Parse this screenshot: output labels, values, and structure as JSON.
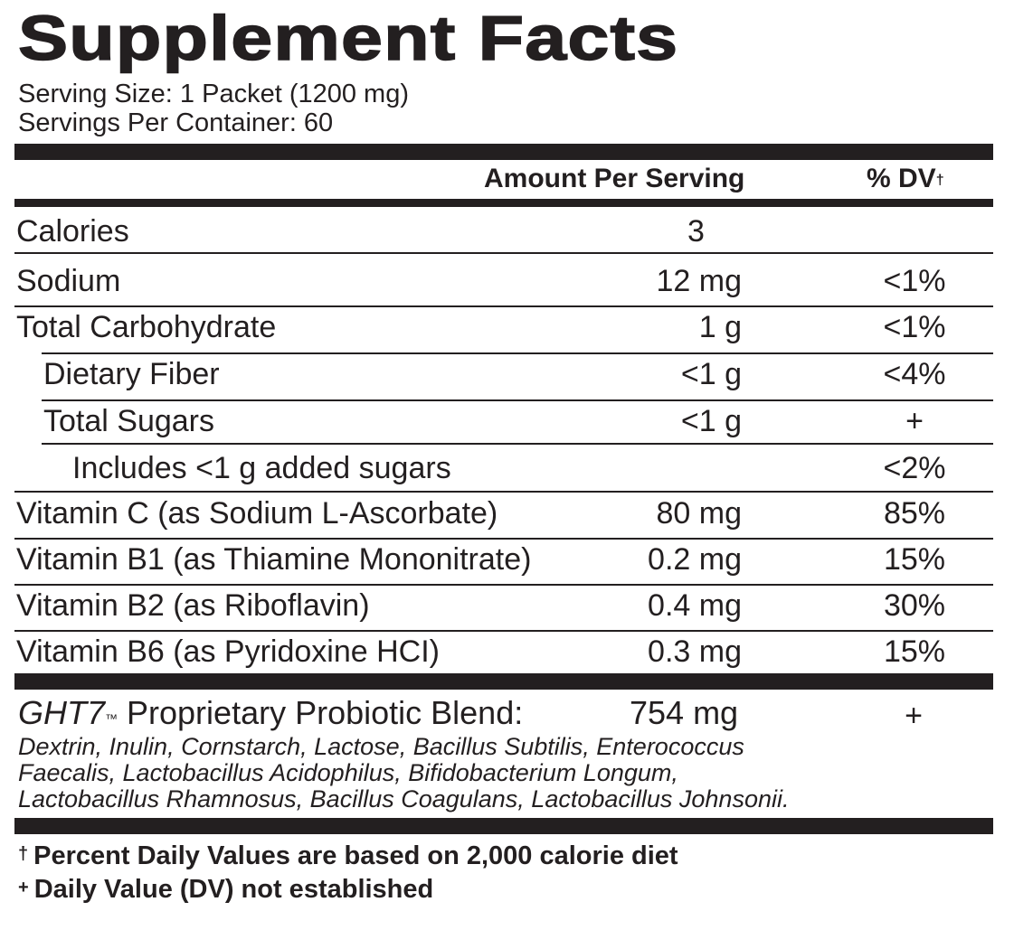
{
  "title": "Supplement Facts",
  "serving_size": "Serving Size: 1 Packet (1200 mg)",
  "servings_per_container": "Servings Per Container: 60",
  "header": {
    "amount_label": "Amount Per Serving",
    "dv_label": "% DV",
    "dv_mark": "†"
  },
  "rows": [
    {
      "name": "Calories",
      "amount": "3",
      "dv": ""
    },
    {
      "name": "Sodium",
      "amount": "12 mg",
      "dv": "<1%"
    },
    {
      "name": "Total Carbohydrate",
      "amount": "1 g",
      "dv": "<1%"
    },
    {
      "name": "Dietary Fiber",
      "amount": "<1 g",
      "dv": "<4%"
    },
    {
      "name": "Total Sugars",
      "amount": "<1 g",
      "dv": "+"
    },
    {
      "name": "Includes <1 g added sugars",
      "amount": "",
      "dv": "<2%"
    },
    {
      "name": "Vitamin C (as Sodium L-Ascorbate)",
      "amount": "80 mg",
      "dv": "85%"
    },
    {
      "name": "Vitamin B1 (as Thiamine Mononitrate)",
      "amount": "0.2 mg",
      "dv": "15%"
    },
    {
      "name": "Vitamin B2 (as Riboflavin)",
      "amount": "0.4 mg",
      "dv": "30%"
    },
    {
      "name": "Vitamin B6 (as Pyridoxine HCI)",
      "amount": "0.3 mg",
      "dv": "15%"
    }
  ],
  "blend": {
    "brand": "GHT7",
    "trademark": "™",
    "name": " Proprietary Probiotic Blend:",
    "amount": "754 mg",
    "dv": "+",
    "ingredients_lines": [
      "Dextrin, Inulin, Cornstarch, Lactose, Bacillus Subtilis, Enterococcus",
      "Faecalis, Lactobacillus Acidophilus, Bifidobacterium Longum,",
      "Lactobacillus Rhamnosus, Bacillus Coagulans, Lactobacillus Johnsonii."
    ]
  },
  "footnotes": [
    {
      "symbol": "†",
      "text": "Percent Daily Values are based on 2,000 calorie diet"
    },
    {
      "symbol": "+",
      "text": "Daily Value (DV) not established"
    }
  ],
  "colors": {
    "ink": "#231f20",
    "background": "#ffffff"
  }
}
